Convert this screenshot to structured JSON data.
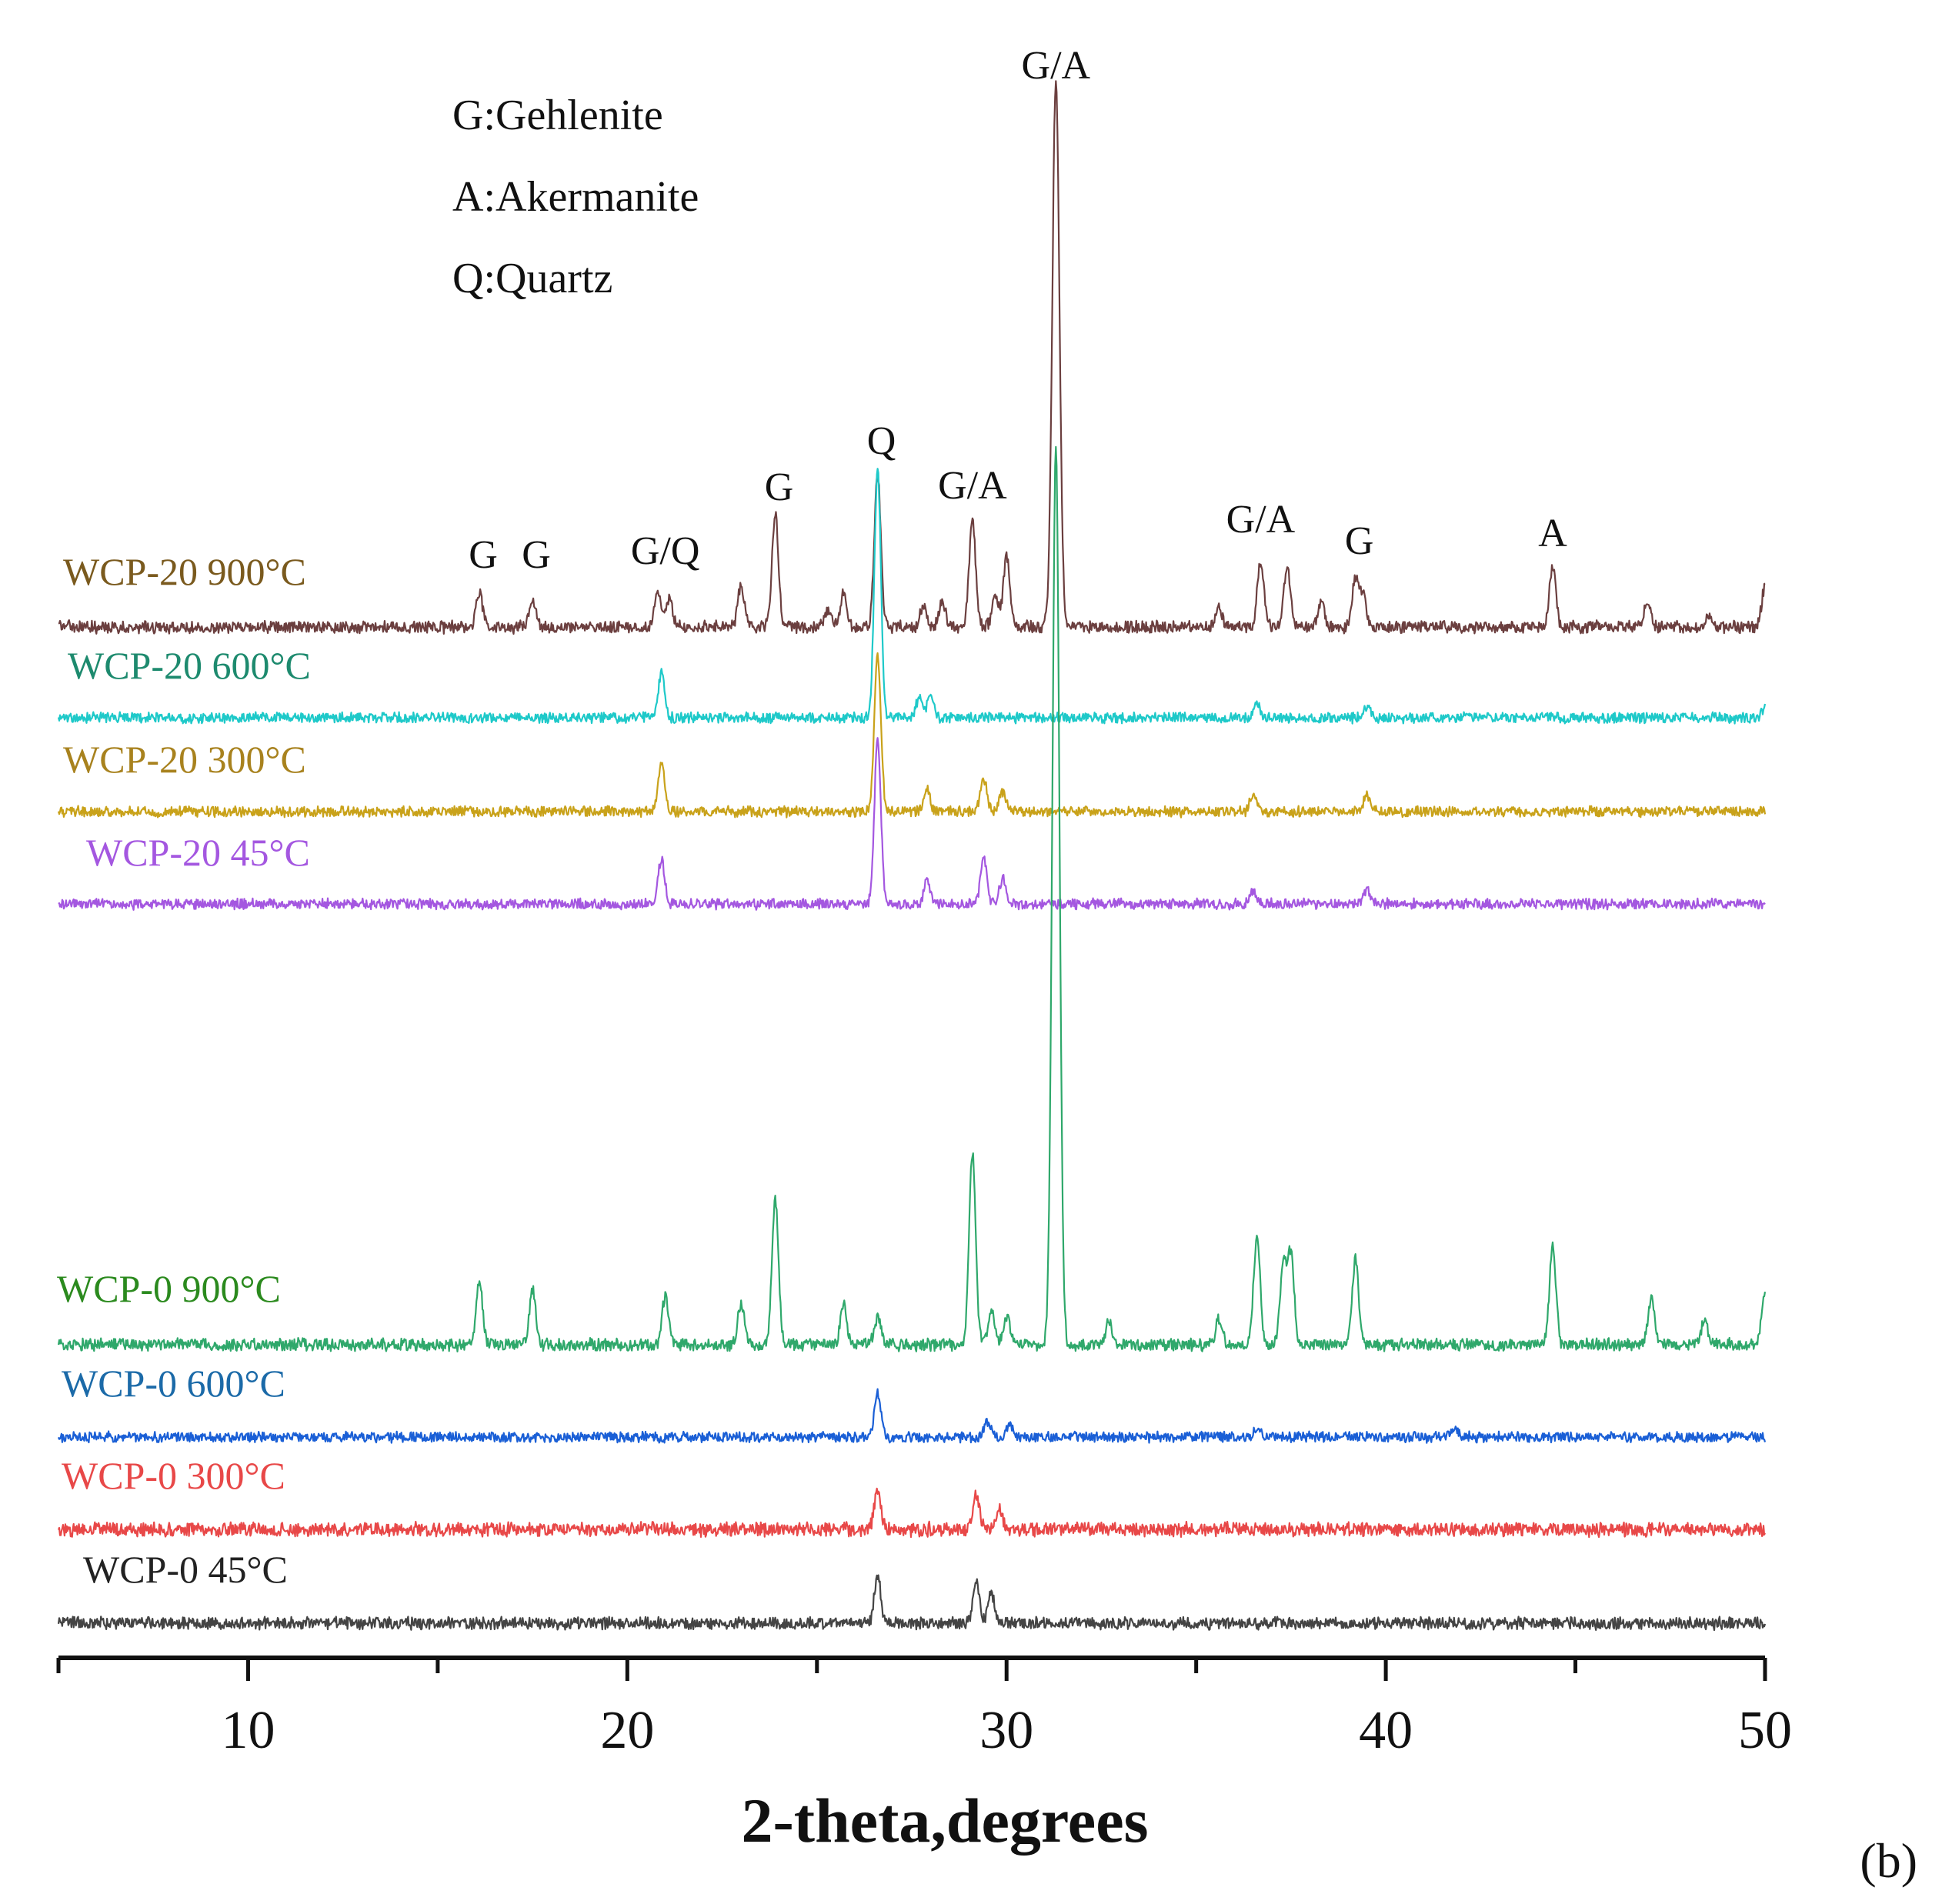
{
  "chart_data": {
    "type": "line",
    "xlabel": "2-theta,degrees",
    "panel_label": "(b)",
    "xlim": [
      5,
      50
    ],
    "x_ticks": [
      10,
      20,
      30,
      40,
      50
    ],
    "x_minor_step": 5,
    "legend_key": [
      "G:Gehlenite",
      "A:Akermanite",
      "Q:Quartz"
    ],
    "series": [
      {
        "name": "WCP-20 900°C",
        "color": "#6b3f3f",
        "label_color": "#7a5a1e",
        "peaks": [
          [
            16.1,
            0.11
          ],
          [
            17.5,
            0.09
          ],
          [
            20.8,
            0.12
          ],
          [
            21.1,
            0.09
          ],
          [
            23.0,
            0.13
          ],
          [
            23.9,
            0.36
          ],
          [
            25.3,
            0.05
          ],
          [
            25.7,
            0.11
          ],
          [
            26.6,
            0.48
          ],
          [
            27.8,
            0.06
          ],
          [
            28.3,
            0.08
          ],
          [
            29.1,
            0.34
          ],
          [
            29.7,
            0.1
          ],
          [
            30.0,
            0.22
          ],
          [
            31.3,
            1.72
          ],
          [
            35.6,
            0.06
          ],
          [
            36.7,
            0.21
          ],
          [
            37.4,
            0.19
          ],
          [
            38.3,
            0.07
          ],
          [
            39.2,
            0.15
          ],
          [
            39.4,
            0.1
          ],
          [
            44.4,
            0.19
          ],
          [
            46.9,
            0.08
          ],
          [
            48.5,
            0.04
          ],
          [
            50.0,
            0.13
          ]
        ]
      },
      {
        "name": "WCP-20 600°C",
        "color": "#1ec9c9",
        "label_color": "#1d8a6e",
        "peaks": [
          [
            20.9,
            0.14
          ],
          [
            26.6,
            0.79
          ],
          [
            27.7,
            0.06
          ],
          [
            28.0,
            0.07
          ],
          [
            36.6,
            0.05
          ],
          [
            39.5,
            0.04
          ],
          [
            50.0,
            0.03
          ]
        ]
      },
      {
        "name": "WCP-20 300°C",
        "color": "#c9a21a",
        "label_color": "#a8821e",
        "peaks": [
          [
            20.9,
            0.15
          ],
          [
            26.6,
            0.5
          ],
          [
            27.9,
            0.07
          ],
          [
            29.4,
            0.1
          ],
          [
            29.9,
            0.06
          ],
          [
            36.5,
            0.05
          ],
          [
            39.5,
            0.05
          ]
        ]
      },
      {
        "name": "WCP-20 45°C",
        "color": "#a457e0",
        "label_color": "#a457e0",
        "peaks": [
          [
            20.9,
            0.14
          ],
          [
            26.6,
            0.52
          ],
          [
            27.9,
            0.07
          ],
          [
            29.4,
            0.14
          ],
          [
            29.9,
            0.08
          ],
          [
            36.5,
            0.04
          ],
          [
            39.5,
            0.04
          ]
        ]
      },
      {
        "name": "WCP-0 900°C",
        "color": "#2fa86b",
        "label_color": "#2b8a1e",
        "peaks": [
          [
            16.1,
            0.2
          ],
          [
            17.5,
            0.17
          ],
          [
            21.0,
            0.15
          ],
          [
            23.0,
            0.13
          ],
          [
            23.9,
            0.46
          ],
          [
            25.7,
            0.13
          ],
          [
            26.6,
            0.09
          ],
          [
            29.1,
            0.61
          ],
          [
            29.6,
            0.11
          ],
          [
            30.0,
            0.09
          ],
          [
            31.3,
            2.82
          ],
          [
            32.7,
            0.08
          ],
          [
            35.6,
            0.08
          ],
          [
            36.6,
            0.34
          ],
          [
            37.3,
            0.25
          ],
          [
            37.5,
            0.28
          ],
          [
            39.2,
            0.27
          ],
          [
            44.4,
            0.31
          ],
          [
            47.0,
            0.14
          ],
          [
            48.4,
            0.07
          ],
          [
            50.0,
            0.16
          ]
        ]
      },
      {
        "name": "WCP-0 600°C",
        "color": "#1a5fd6",
        "label_color": "#1b6aa8",
        "peaks": [
          [
            26.6,
            0.14
          ],
          [
            29.5,
            0.05
          ],
          [
            30.1,
            0.04
          ],
          [
            36.6,
            0.03
          ],
          [
            41.8,
            0.03
          ]
        ]
      },
      {
        "name": "WCP-0 300°C",
        "color": "#e84848",
        "label_color": "#e84848",
        "peaks": [
          [
            26.6,
            0.13
          ],
          [
            29.2,
            0.11
          ],
          [
            29.8,
            0.07
          ]
        ]
      },
      {
        "name": "WCP-0 45°C",
        "color": "#444444",
        "label_color": "#222222",
        "peaks": [
          [
            26.6,
            0.15
          ],
          [
            29.2,
            0.13
          ],
          [
            29.6,
            0.09
          ]
        ]
      }
    ],
    "peak_annotations": [
      {
        "text": "G",
        "x": 16.2
      },
      {
        "text": "G",
        "x": 17.6
      },
      {
        "text": "G/Q",
        "x": 21.0
      },
      {
        "text": "G",
        "x": 24.0
      },
      {
        "text": "Q",
        "x": 26.7
      },
      {
        "text": "G/A",
        "x": 29.1
      },
      {
        "text": "G/A",
        "x": 31.3
      },
      {
        "text": "G/A",
        "x": 36.7
      },
      {
        "text": "G",
        "x": 39.3
      },
      {
        "text": "A",
        "x": 44.4
      }
    ]
  }
}
